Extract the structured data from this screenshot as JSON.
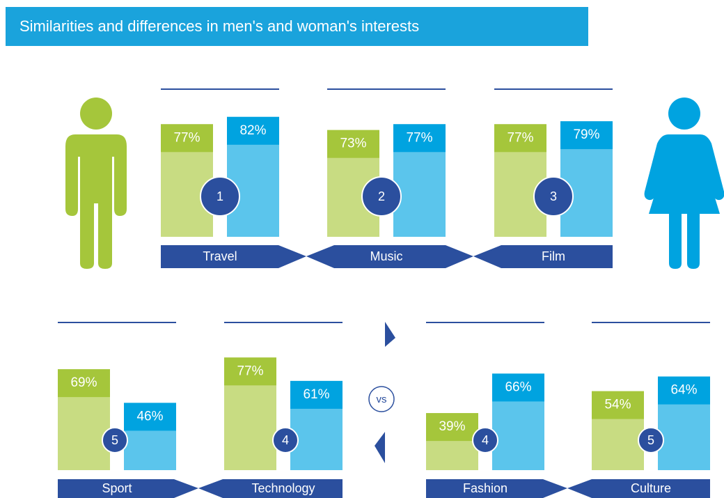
{
  "title": "Similarities and differences in men's and woman's interests",
  "vs": "vs",
  "groups": [
    {
      "category": "Travel",
      "rank": 1,
      "men": 77,
      "men_label": "77%",
      "women": 82,
      "women_label": "82%"
    },
    {
      "category": "Music",
      "rank": 2,
      "men": 73,
      "men_label": "73%",
      "women": 77,
      "women_label": "77%"
    },
    {
      "category": "Film",
      "rank": 3,
      "men": 77,
      "men_label": "77%",
      "women": 79,
      "women_label": "79%"
    },
    {
      "category": "Sport",
      "rank": 5,
      "men": 69,
      "men_label": "69%",
      "women": 46,
      "women_label": "46%"
    },
    {
      "category": "Technology",
      "rank": 4,
      "men": 77,
      "men_label": "77%",
      "women": 61,
      "women_label": "61%"
    },
    {
      "category": "Fashion",
      "rank": 4,
      "men": 39,
      "men_label": "39%",
      "women": 66,
      "women_label": "66%"
    },
    {
      "category": "Culture",
      "rank": 5,
      "men": 54,
      "men_label": "54%",
      "women": 64,
      "women_label": "64%"
    }
  ]
}
